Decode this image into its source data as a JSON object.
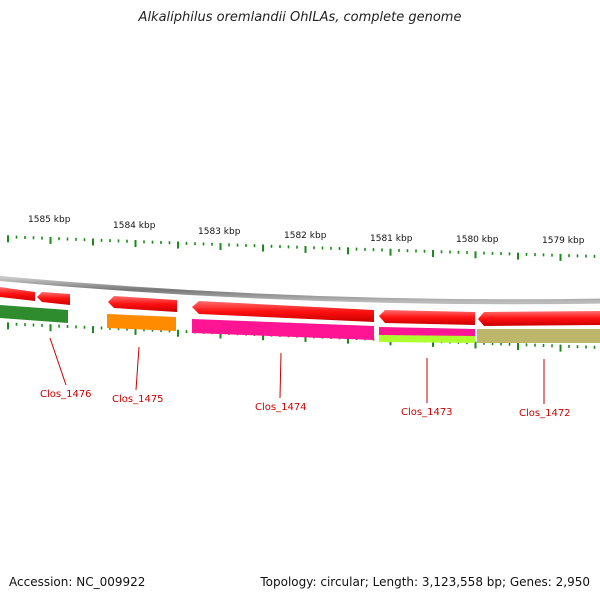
{
  "title": "Alkaliphilus oremlandii OhILAs, complete genome",
  "accession": "Accession: NC_009922",
  "summary": "Topology: circular; Length: 3,123,558 bp; Genes: 2,950",
  "colors": {
    "tick": "#1a8a1a",
    "backbone": "#8a8a8a",
    "gene_label": "#cc0000",
    "strand_forward": "#ee1111"
  },
  "kbp_labels": [
    "1585 kbp",
    "1584 kbp",
    "1583 kbp",
    "1582 kbp",
    "1581 kbp",
    "1580 kbp",
    "1579 kbp"
  ],
  "genes": [
    {
      "label": "Clos_1476",
      "cog_color": "#2e8b2e"
    },
    {
      "label": "Clos_1475",
      "cog_color": "#ff8c00"
    },
    {
      "label": "Clos_1474",
      "cog_color": "#ff1493"
    },
    {
      "label": "Clos_1473",
      "cog_color": "#adff2f"
    },
    {
      "label": "Clos_1472",
      "cog_color": "#bdb76b"
    }
  ]
}
